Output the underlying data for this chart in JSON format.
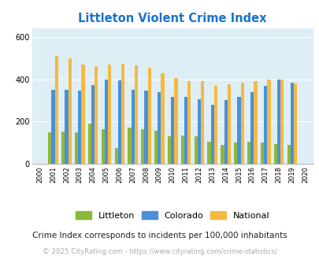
{
  "years": [
    2000,
    2001,
    2002,
    2003,
    2004,
    2005,
    2006,
    2007,
    2008,
    2009,
    2010,
    2011,
    2012,
    2013,
    2014,
    2015,
    2016,
    2017,
    2018,
    2019,
    2020
  ],
  "littleton": [
    0,
    150,
    152,
    150,
    190,
    165,
    75,
    170,
    162,
    158,
    132,
    133,
    132,
    103,
    88,
    100,
    105,
    100,
    93,
    90,
    0
  ],
  "colorado": [
    0,
    352,
    352,
    347,
    373,
    400,
    395,
    350,
    347,
    340,
    315,
    318,
    305,
    280,
    302,
    315,
    338,
    368,
    400,
    383,
    0
  ],
  "national": [
    0,
    510,
    498,
    470,
    462,
    469,
    473,
    467,
    455,
    430,
    405,
    390,
    391,
    368,
    376,
    384,
    390,
    398,
    399,
    381,
    0
  ],
  "title": "Littleton Violent Crime Index",
  "title_color": "#1874cd",
  "ylabel_vals": [
    0,
    200,
    400,
    600
  ],
  "ylim": [
    0,
    640
  ],
  "bg_color": "#deeef5",
  "littleton_color": "#8db83a",
  "colorado_color": "#4a90d9",
  "national_color": "#f5b942",
  "legend_labels": [
    "Littleton",
    "Colorado",
    "National"
  ],
  "footnote1": "Crime Index corresponds to incidents per 100,000 inhabitants",
  "footnote2": "© 2025 CityRating.com - https://www.cityrating.com/crime-statistics/",
  "footnote1_color": "#222222",
  "footnote2_color": "#aaaaaa"
}
